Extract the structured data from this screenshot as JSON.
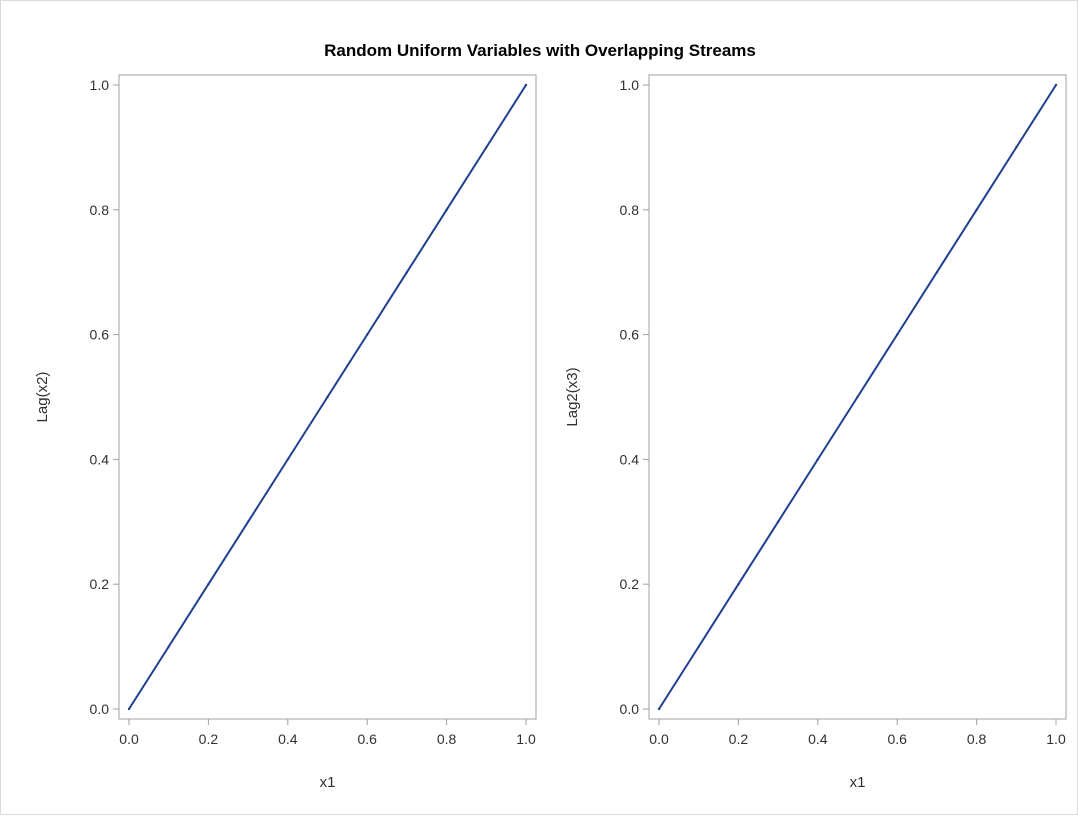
{
  "chart_data": {
    "title": "Random Uniform Variables with Overlapping Streams",
    "panels": [
      {
        "type": "scatter",
        "xlabel": "x1",
        "ylabel": "Lag(x2)",
        "xlim": [
          0,
          1
        ],
        "ylim": [
          0,
          1
        ],
        "xticks": [
          "0.0",
          "0.2",
          "0.4",
          "0.6",
          "0.8",
          "1.0"
        ],
        "yticks": [
          "0.0",
          "0.2",
          "0.4",
          "0.6",
          "0.8",
          "1.0"
        ],
        "points": [
          [
            0.0,
            0.0
          ],
          [
            0.1,
            0.1
          ],
          [
            0.2,
            0.2
          ],
          [
            0.3,
            0.3
          ],
          [
            0.4,
            0.4
          ],
          [
            0.5,
            0.5
          ],
          [
            0.6,
            0.6
          ],
          [
            0.7,
            0.7
          ],
          [
            0.8,
            0.8
          ],
          [
            0.9,
            0.9
          ],
          [
            1.0,
            1.0
          ]
        ],
        "color": "#1f3f8f"
      },
      {
        "type": "scatter",
        "xlabel": "x1",
        "ylabel": "Lag2(x3)",
        "xlim": [
          0,
          1
        ],
        "ylim": [
          0,
          1
        ],
        "xticks": [
          "0.0",
          "0.2",
          "0.4",
          "0.6",
          "0.8",
          "1.0"
        ],
        "yticks": [
          "0.0",
          "0.2",
          "0.4",
          "0.6",
          "0.8",
          "1.0"
        ],
        "points": [
          [
            0.0,
            0.0
          ],
          [
            0.1,
            0.1
          ],
          [
            0.2,
            0.2
          ],
          [
            0.3,
            0.3
          ],
          [
            0.4,
            0.4
          ],
          [
            0.5,
            0.5
          ],
          [
            0.6,
            0.6
          ],
          [
            0.7,
            0.7
          ],
          [
            0.8,
            0.8
          ],
          [
            0.9,
            0.9
          ],
          [
            1.0,
            1.0
          ]
        ],
        "color": "#1f3f8f"
      }
    ]
  }
}
